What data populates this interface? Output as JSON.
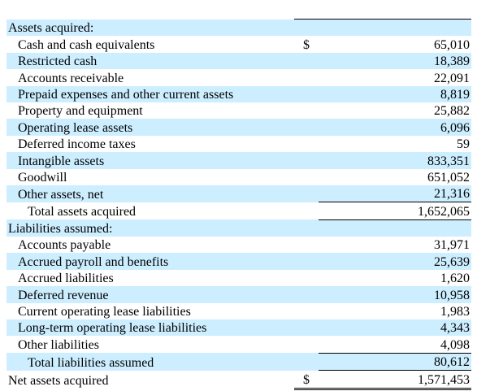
{
  "table": {
    "rows": [
      {
        "label": "Assets acquired:"
      },
      {
        "label": "Cash and cash equivalents",
        "currency": "$",
        "value": "65,010"
      },
      {
        "label": "Restricted cash",
        "value": "18,389"
      },
      {
        "label": "Accounts receivable",
        "value": "22,091"
      },
      {
        "label": "Prepaid expenses and other current assets",
        "value": "8,819"
      },
      {
        "label": "Property and equipment",
        "value": "25,882"
      },
      {
        "label": "Operating lease assets",
        "value": "6,096"
      },
      {
        "label": "Deferred income taxes",
        "value": "59"
      },
      {
        "label": "Intangible assets",
        "value": "833,351"
      },
      {
        "label": "Goodwill",
        "value": "651,052"
      },
      {
        "label": "Other assets, net",
        "value": "21,316"
      },
      {
        "label": "Total assets acquired",
        "value": "1,652,065"
      },
      {
        "label": "Liabilities assumed:"
      },
      {
        "label": "Accounts payable",
        "value": "31,971"
      },
      {
        "label": "Accrued payroll and benefits",
        "value": "25,639"
      },
      {
        "label": "Accrued liabilities",
        "value": "1,620"
      },
      {
        "label": "Deferred revenue",
        "value": "10,958"
      },
      {
        "label": "Current operating lease liabilities",
        "value": "1,983"
      },
      {
        "label": "Long-term operating lease liabilities",
        "value": "4,343"
      },
      {
        "label": "Other liabilities",
        "value": "4,098"
      },
      {
        "label": "Total liabilities assumed",
        "value": "80,612"
      },
      {
        "label": "Net assets acquired",
        "currency": "$",
        "value": "1,571,453"
      }
    ]
  }
}
